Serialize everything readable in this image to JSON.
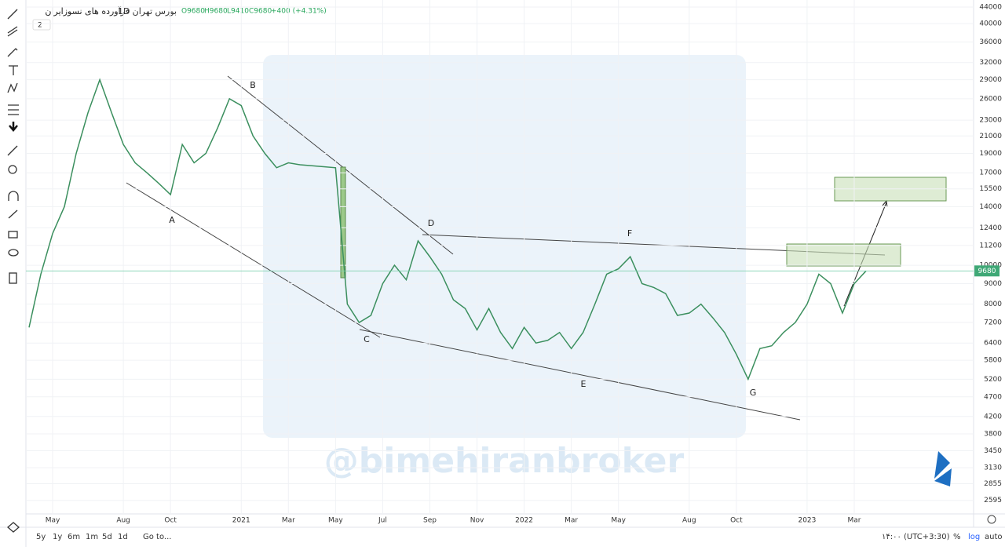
{
  "header": {
    "symbol": "فرآورده های نسوزایران",
    "interval": "1D",
    "exchange": "بورس تهران",
    "open": "O9680",
    "high": "H9680",
    "low": "L9410",
    "close": "C9680",
    "change": "+400 (+4.31%)",
    "collapse": "2"
  },
  "toolbar": [
    "5y",
    "1y",
    "6m",
    "1m",
    "5d",
    "1d",
    "Go to..."
  ],
  "status": [
    "۱۴:۰۰ (UTC+3:30)",
    "%",
    "log",
    "auto"
  ],
  "watermark": "@bimehiranbroker",
  "chart_data": {
    "type": "line",
    "log_scale": true,
    "color": "#3b8f5e",
    "categories": [
      null,
      null,
      "May",
      null,
      null,
      null,
      null,
      null,
      "Aug",
      null,
      null,
      null,
      "Oct",
      null,
      null,
      null,
      null,
      null,
      "2021",
      null,
      null,
      null,
      "Mar",
      null,
      null,
      null,
      "May",
      null,
      null,
      null,
      "Jul",
      null,
      null,
      null,
      "Sep",
      null,
      null,
      null,
      "Nov",
      null,
      null,
      null,
      "2022",
      null,
      null,
      null,
      "Mar",
      null,
      null,
      null,
      "May",
      null,
      null,
      null,
      null,
      null,
      "Aug",
      null,
      null,
      null,
      "Oct",
      null,
      null,
      null,
      null,
      null,
      "2023",
      null,
      null,
      null,
      "Mar",
      null
    ],
    "values": [
      7000,
      9500,
      12000,
      14000,
      19000,
      24000,
      29000,
      24000,
      20000,
      18000,
      17000,
      16000,
      15000,
      20000,
      18000,
      19000,
      22000,
      26000,
      25000,
      21000,
      19000,
      17500,
      18000,
      17800,
      17700,
      17600,
      17500,
      8000,
      7200,
      7500,
      9000,
      10000,
      9200,
      11500,
      10500,
      9500,
      8200,
      7800,
      6900,
      7800,
      6800,
      6200,
      7000,
      6400,
      6500,
      6800,
      6200,
      6800,
      8000,
      9500,
      9800,
      10500,
      9000,
      8800,
      8500,
      7500,
      7600,
      8000,
      7400,
      6800,
      6000,
      5200,
      6200,
      6300,
      6800,
      7200,
      8000,
      9500,
      9000,
      7600,
      9000,
      9680
    ],
    "ylim": [
      2500,
      45000
    ],
    "yticks": [
      2595,
      2855,
      3130,
      3450,
      3800,
      4200,
      4700,
      5200,
      5800,
      6400,
      7200,
      8000,
      9000,
      10000,
      11200,
      12400,
      14000,
      15500,
      17000,
      19000,
      21000,
      23000,
      26000,
      29000,
      32000,
      36000,
      40000,
      44000
    ],
    "last_price": 9680,
    "annotations": [
      "A",
      "B",
      "C",
      "D",
      "E",
      "F",
      "G"
    ]
  }
}
